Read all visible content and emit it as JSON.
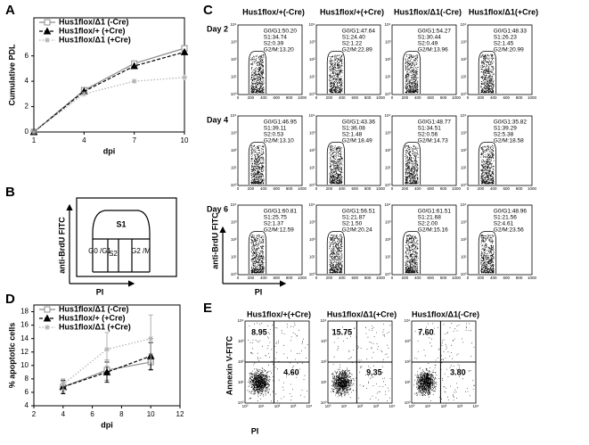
{
  "panels": [
    "A",
    "B",
    "C",
    "D",
    "E"
  ],
  "chart_data": [
    {
      "type": "line",
      "x_label": "dpi",
      "y_label": "Cumulative PDL",
      "x": [
        1,
        4,
        7,
        10
      ],
      "xlim": [
        1,
        10
      ],
      "xticks": [
        1,
        4,
        7,
        10
      ],
      "ylim": [
        0,
        9
      ],
      "yticks": [
        0,
        2,
        4,
        6
      ],
      "legend": "top-left",
      "series": [
        {
          "name": "Hus1flox/Δ1 (-Cre)",
          "color": "#8c8c8c",
          "dash": "solid",
          "marker": "square",
          "values": [
            0,
            3.3,
            5.4,
            6.6
          ]
        },
        {
          "name": "Hus1flox/+ (+Cre)",
          "color": "#000000",
          "dash": "dashed",
          "marker": "triangle",
          "values": [
            0,
            3.2,
            5.2,
            6.3
          ]
        },
        {
          "name": "Hus1flox/Δ1 (+Cre)",
          "color": "#b0b0b0",
          "dash": "dotted",
          "marker": "asterisk",
          "values": [
            0,
            3.0,
            4.0,
            4.3
          ]
        }
      ]
    },
    {
      "type": "line",
      "x_label": "dpi",
      "y_label": "% apoptotic cells",
      "x": [
        4,
        7,
        10
      ],
      "xlim": [
        2,
        12
      ],
      "xticks": [
        2,
        4,
        6,
        8,
        10,
        12
      ],
      "ylim": [
        4,
        19
      ],
      "yticks": [
        4,
        6,
        8,
        10,
        12,
        14,
        16,
        18
      ],
      "legend": "top-left",
      "series": [
        {
          "name": "Hus1flox/Δ1 (-Cre)",
          "color": "#8c8c8c",
          "dash": "solid",
          "marker": "square",
          "values": [
            6.8,
            9.3,
            10.5
          ],
          "errors": [
            0.8,
            1.5,
            1.2
          ]
        },
        {
          "name": "Hus1flox/+ (+Cre)",
          "color": "#000000",
          "dash": "dashed",
          "marker": "triangle",
          "values": [
            6.8,
            9.0,
            11.4
          ],
          "errors": [
            1.0,
            1.5,
            2.0
          ]
        },
        {
          "name": "Hus1flox/Δ1 (+Cre)",
          "color": "#b0b0b0",
          "dash": "dotted",
          "marker": "asterisk",
          "values": [
            7.2,
            12.4,
            14.0
          ],
          "errors": [
            0.8,
            2.5,
            3.5
          ]
        }
      ]
    }
  ],
  "panel_b": {
    "gates": [
      "S1",
      "G0 /G1",
      "S2",
      "G2 /M"
    ],
    "y_label": "anti-BrdU FITC",
    "x_label": "PI"
  },
  "panel_c": {
    "columns": [
      "Hus1flox/+(-Cre)",
      "Hus1flox/+(+Cre)",
      "Hus1flox/Δ1(-Cre)",
      "Hus1flox/Δ1(+Cre)"
    ],
    "rows": [
      {
        "label": "Day 2",
        "cells": [
          [
            "G0/G1:50.20",
            "S1:34.74",
            "S2:0.39",
            "G2/M:13.20"
          ],
          [
            "G0/G1:47.64",
            "S1:24.40",
            "S2:1.22",
            "G2/M:22.89"
          ],
          [
            "G0/G1:54.27",
            "S1:30.44",
            "S2:0.49",
            "G2/M:13.96"
          ],
          [
            "G0/G1:48.33",
            "S1:26.23",
            "S2:1.45",
            "G2/M:20.99"
          ]
        ]
      },
      {
        "label": "Day 4",
        "cells": [
          [
            "G0/G1:46.95",
            "S1:39.11",
            "S2:0.53",
            "G2/M:13.10"
          ],
          [
            "G0/G1:43.36",
            "S1:36.08",
            "S2:1.48",
            "G2/M:18.49"
          ],
          [
            "G0/G1:48.77",
            "S1:34.51",
            "S2:0.56",
            "G2/M:14.73"
          ],
          [
            "G0/G1:35.82",
            "S1:39.29",
            "S2:5.38",
            "G2/M:18.58"
          ]
        ]
      },
      {
        "label": "Day 6",
        "cells": [
          [
            "G0/G1:60.81",
            "S1:25.75",
            "S2:1.37",
            "G2/M:12.59"
          ],
          [
            "G0/G1:56.51",
            "S1:21.87",
            "S2:1.50",
            "G2/M:20.24"
          ],
          [
            "G0/G1:61.51",
            "S1:21.68",
            "S2:2.00",
            "G2/M:15.16"
          ],
          [
            "G0/G1:48.96",
            "S1:21.56",
            "S2:4.61",
            "G2/M:23.56"
          ]
        ]
      }
    ],
    "x_ticks": [
      "0",
      "200",
      "400",
      "600",
      "800",
      "1000"
    ],
    "y_ticks": [
      "10⁰",
      "10¹",
      "10²",
      "10³",
      "10⁴"
    ],
    "y_label": "anti-BrdU FITC",
    "x_label": "PI"
  },
  "panel_e": {
    "plots": [
      {
        "title": "Hus1flox/+(+Cre)",
        "upper_left": "8.95",
        "lower_right": "4.60"
      },
      {
        "title": "Hus1flox/Δ1(+Cre)",
        "upper_left": "15.75",
        "lower_right": "9.35"
      },
      {
        "title": "Hus1flox/Δ1(-Cre)",
        "upper_left": "7.60",
        "lower_right": "3.80"
      }
    ],
    "ticks": [
      "10⁰",
      "10¹",
      "10²",
      "10³",
      "10⁴"
    ],
    "y_label": "Annexin V-FITC",
    "x_label": "PI"
  }
}
